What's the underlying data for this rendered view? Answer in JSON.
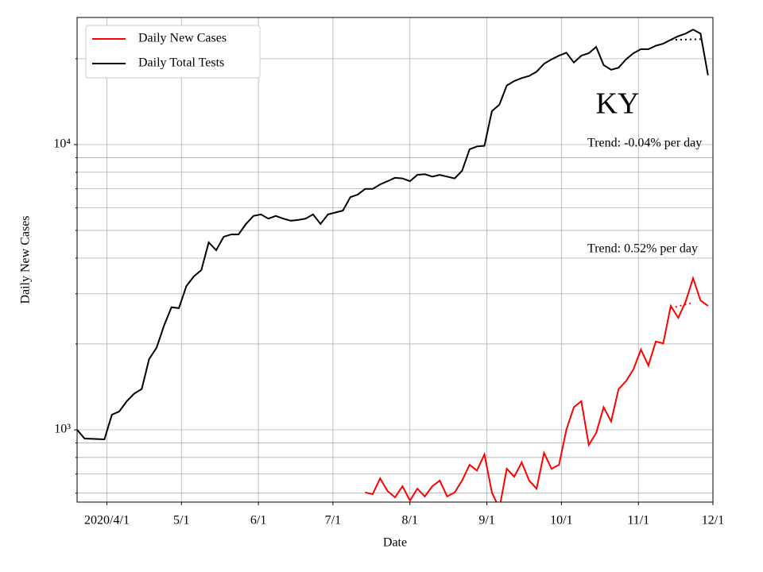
{
  "chart_data": {
    "type": "line",
    "title": "KY",
    "x_label": "Date",
    "y_label": "Daily New Cases",
    "annotations": [
      "Trend: -0.04% per day",
      "Trend: 0.52% per day"
    ],
    "log_scale": true,
    "grid": true,
    "legend": "upper-left",
    "xlim": [
      "2020-03-20",
      "2020-12-01"
    ],
    "xticks": [
      {
        "value": "2020-04-01",
        "label": "2020/4/1"
      },
      {
        "value": "2020-05-01",
        "label": "5/1"
      },
      {
        "value": "2020-06-01",
        "label": "6/1"
      },
      {
        "value": "2020-07-01",
        "label": "7/1"
      },
      {
        "value": "2020-08-01",
        "label": "8/1"
      },
      {
        "value": "2020-09-01",
        "label": "9/1"
      },
      {
        "value": "2020-10-01",
        "label": "10/1"
      },
      {
        "value": "2020-11-01",
        "label": "11/1"
      },
      {
        "value": "2020-12-01",
        "label": "12/1"
      }
    ],
    "ylim": [
      558,
      27900
    ],
    "yticks": [
      {
        "value": 1000,
        "label": "10³"
      },
      {
        "value": 10000,
        "label": "10⁴"
      }
    ],
    "yminorticks": [
      600,
      700,
      800,
      900,
      2000,
      3000,
      4000,
      5000,
      6000,
      7000,
      8000,
      9000,
      20000
    ],
    "x": [
      "2020-03-20",
      "2020-03-23",
      "2020-03-31",
      "2020-04-03",
      "2020-04-06",
      "2020-04-09",
      "2020-04-12",
      "2020-04-15",
      "2020-04-18",
      "2020-04-21",
      "2020-04-24",
      "2020-04-27",
      "2020-04-30",
      "2020-05-03",
      "2020-05-06",
      "2020-05-09",
      "2020-05-12",
      "2020-05-15",
      "2020-05-18",
      "2020-05-21",
      "2020-05-24",
      "2020-05-27",
      "2020-05-30",
      "2020-06-02",
      "2020-06-05",
      "2020-06-08",
      "2020-06-11",
      "2020-06-14",
      "2020-06-17",
      "2020-06-20",
      "2020-06-23",
      "2020-06-26",
      "2020-06-29",
      "2020-07-02",
      "2020-07-05",
      "2020-07-08",
      "2020-07-11",
      "2020-07-14",
      "2020-07-17",
      "2020-07-20",
      "2020-07-23",
      "2020-07-26",
      "2020-07-29",
      "2020-08-01",
      "2020-08-04",
      "2020-08-07",
      "2020-08-10",
      "2020-08-13",
      "2020-08-16",
      "2020-08-19",
      "2020-08-22",
      "2020-08-25",
      "2020-08-28",
      "2020-08-31",
      "2020-09-03",
      "2020-09-06",
      "2020-09-09",
      "2020-09-12",
      "2020-09-15",
      "2020-09-18",
      "2020-09-21",
      "2020-09-24",
      "2020-09-27",
      "2020-09-30",
      "2020-10-03",
      "2020-10-06",
      "2020-10-09",
      "2020-10-12",
      "2020-10-15",
      "2020-10-18",
      "2020-10-21",
      "2020-10-24",
      "2020-10-27",
      "2020-10-30",
      "2020-11-02",
      "2020-11-05",
      "2020-11-08",
      "2020-11-11",
      "2020-11-14",
      "2020-11-17",
      "2020-11-20",
      "2020-11-23",
      "2020-11-26",
      "2020-11-29"
    ],
    "series": [
      {
        "name": "Daily New Cases",
        "color": "#ff0000",
        "values": [
          null,
          null,
          null,
          null,
          null,
          null,
          null,
          null,
          null,
          null,
          null,
          null,
          null,
          null,
          null,
          null,
          null,
          null,
          null,
          null,
          null,
          null,
          null,
          null,
          null,
          null,
          null,
          null,
          null,
          null,
          null,
          null,
          null,
          null,
          null,
          null,
          null,
          603,
          595,
          676,
          610,
          580,
          634,
          565,
          622,
          584,
          634,
          664,
          584,
          603,
          664,
          754,
          720,
          820,
          603,
          530,
          730,
          685,
          769,
          664,
          622,
          830,
          730,
          754,
          1000,
          1200,
          1260,
          885,
          975,
          1200,
          1070,
          1390,
          1480,
          1630,
          1910,
          1680,
          2040,
          2010,
          2720,
          2470,
          2810,
          3400,
          2840,
          2720
        ]
      },
      {
        "name": "Daily Total Tests",
        "color": "#000000",
        "values": [
          1000,
          932,
          926,
          1130,
          1160,
          1260,
          1340,
          1390,
          1770,
          1940,
          2320,
          2690,
          2670,
          3190,
          3450,
          3630,
          4540,
          4260,
          4750,
          4840,
          4840,
          5270,
          5620,
          5690,
          5500,
          5620,
          5500,
          5410,
          5440,
          5500,
          5690,
          5270,
          5690,
          5780,
          5870,
          6540,
          6680,
          6990,
          6990,
          7250,
          7440,
          7650,
          7610,
          7440,
          7830,
          7870,
          7720,
          7830,
          7720,
          7610,
          8090,
          9620,
          9850,
          9900,
          13100,
          13800,
          16100,
          16700,
          17100,
          17400,
          18000,
          19200,
          19900,
          20500,
          21000,
          19400,
          20500,
          20900,
          22000,
          19000,
          18300,
          18600,
          19900,
          20900,
          21600,
          21600,
          22200,
          22600,
          23300,
          24000,
          24500,
          25300,
          24500,
          17500
        ]
      }
    ],
    "trends": [
      {
        "color": "#000000",
        "x": [
          "2020-11-14",
          "2020-11-26"
        ],
        "values": [
          23300,
          23400
        ]
      },
      {
        "color": "#ff0000",
        "x": [
          "2020-11-14",
          "2020-11-22"
        ],
        "values": [
          2670,
          2780
        ]
      }
    ]
  }
}
